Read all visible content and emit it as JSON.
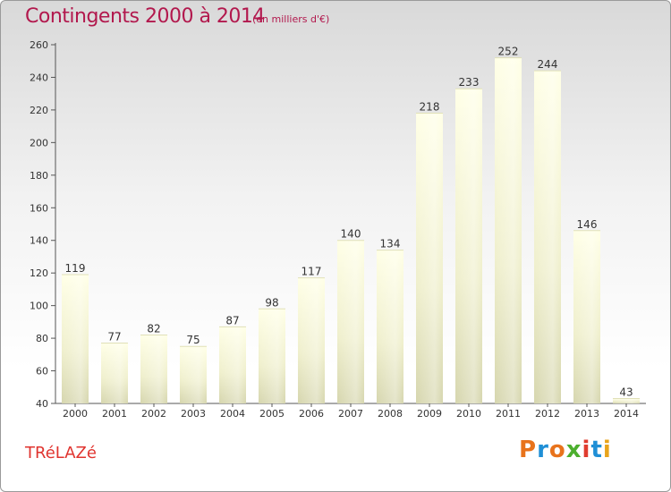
{
  "header": {
    "title": "Contingents 2000 à 2014",
    "subtitle": "(en milliers d'€)"
  },
  "footer": {
    "city": "TRéLAZé",
    "logo": "Proxiti",
    "logo_colors": [
      "#e8731c",
      "#1f8fd6",
      "#e8731c",
      "#4caf2e",
      "#e03c2f",
      "#1f8fd6",
      "#e8a41c"
    ]
  },
  "chart_data": {
    "type": "bar",
    "categories": [
      "2000",
      "2001",
      "2002",
      "2003",
      "2004",
      "2005",
      "2006",
      "2007",
      "2008",
      "2009",
      "2010",
      "2011",
      "2012",
      "2013",
      "2014"
    ],
    "values": [
      119,
      77,
      82,
      75,
      87,
      98,
      117,
      140,
      134,
      218,
      233,
      252,
      244,
      146,
      43
    ],
    "title": "Contingents 2000 à 2014",
    "xlabel": "",
    "ylabel": "",
    "ylim": [
      40,
      260
    ],
    "yticks": [
      40,
      60,
      80,
      100,
      120,
      140,
      160,
      180,
      200,
      220,
      240,
      260
    ],
    "grid": false,
    "bar_color": "#f5f5c8"
  }
}
